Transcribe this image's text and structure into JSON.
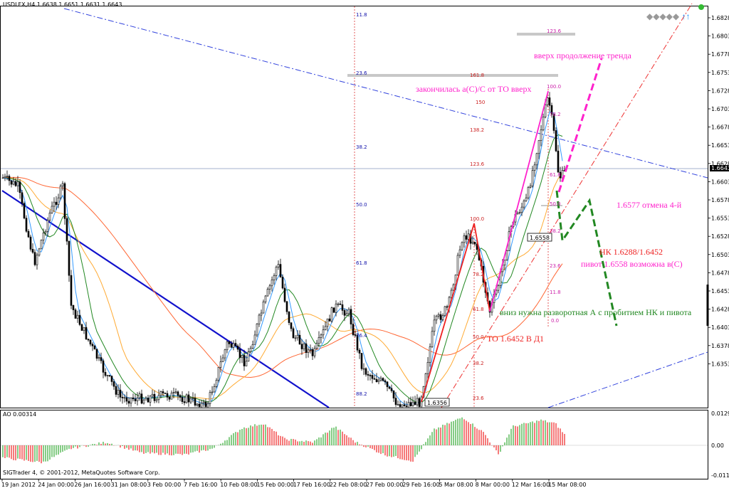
{
  "header": {
    "symbol": "USDLFX,H4",
    "ohlc": "1.6638 1.6651 1.6631 1.6643"
  },
  "current_price": "1.6643",
  "footer": {
    "copyright": "SIGTrader 4, © 2001-2012, MetaQuotes Software Corp."
  },
  "toolbar": {
    "diamonds": "◆◆◆◆◆",
    "arrows": "↑↑"
  },
  "chart_data": [
    {
      "type": "candlestick",
      "y_axis_ticks": [
        "1.6828",
        "1.6803",
        "1.6778",
        "1.6753",
        "1.6728",
        "1.6703",
        "1.6678",
        "1.6653",
        "1.6628",
        "1.6603",
        "1.6578",
        "1.6553",
        "1.6528",
        "1.6503",
        "1.6478",
        "1.6453",
        "1.6428",
        "1.6403",
        "1.6378",
        "1.6353"
      ],
      "ylim": [
        1.6345,
        1.6848
      ],
      "x_axis_ticks": [
        "19 Jan 2012",
        "24 Jan 00:00",
        "26 Jan 16:00",
        "31 Jan 08:00",
        "3 Feb 00:00",
        "7 Feb 16:00",
        "10 Feb 08:00",
        "15 Feb 00:00",
        "17 Feb 16:00",
        "22 Feb 08:00",
        "27 Feb 00:00",
        "29 Feb 16:00",
        "5 Mar 08:00",
        "8 Mar 00:00",
        "12 Mar 16:00",
        "15 Mar 08:00"
      ],
      "price_labels": {
        "low_label": "1.6356",
        "pivot_label": "1.6558"
      },
      "fibo_left": [
        "11.8",
        "23.6",
        "38.2",
        "50.0",
        "61.8",
        "76.4",
        "88.2"
      ],
      "fibo_top": [
        "123.6",
        "161.8",
        "100.0",
        "150",
        "138.2",
        "123.6",
        "78.2",
        "61.8",
        "50.0",
        "38.2",
        "23.6",
        "11.8",
        "0.0"
      ],
      "fibo_middle": [
        "100.0",
        "78.2",
        "61.8",
        "50.0",
        "38.2",
        "23.6"
      ],
      "annotations": {
        "trend_up": "вверх продолжение тренда",
        "ended": "закончилась а(С)/С от ТО вверх",
        "cancel": "1.6577 отмена 4-й",
        "nk": "НК 1.6288/1.6452",
        "pivot": "пивот 1.6558 возможна в(С)",
        "down": "вниз нужна разворотная А с пробитием НК и пивота",
        "to": "ТО 1.6452 В Д1"
      },
      "colors": {
        "bull": "#ffffff",
        "bear": "#000000",
        "ma_orange": "#ff6633",
        "ma_yellow": "#ffaa33",
        "ma_green": "#228822",
        "ma_blue": "#3399ff",
        "magenta": "#ff22cc",
        "red": "#ee2222",
        "navy": "#1111cc"
      }
    },
    {
      "type": "histogram",
      "name": "AO",
      "label": "AO 0.00314",
      "y_axis_ticks": [
        "0.01298",
        "0.00",
        "-0.01112"
      ],
      "colors": {
        "up": "#33aa33",
        "down": "#ee2222"
      }
    }
  ]
}
